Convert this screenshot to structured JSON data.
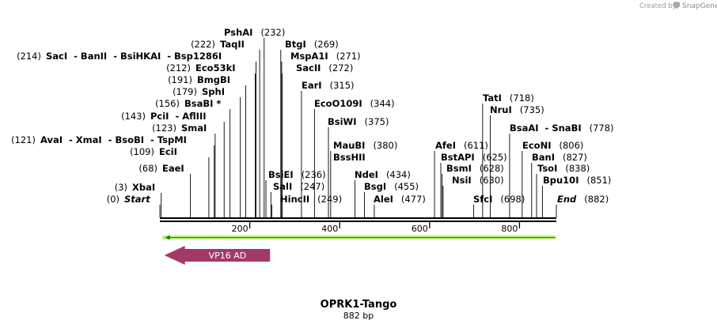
{
  "credit": {
    "prefix": "Created by",
    "brand": "SnapGene"
  },
  "map": {
    "title": "OPRK1-Tango",
    "length_label": "882 bp",
    "length": 882,
    "ticks": [
      "200",
      "400",
      "600",
      "800"
    ],
    "feature": {
      "name": "VP16 AD",
      "start": 10,
      "end": 245,
      "direction": "reverse",
      "color": "#a33a66"
    },
    "selection": {
      "start": 10,
      "end": 882,
      "color": "#b8f07a"
    }
  },
  "sites": [
    {
      "text": "Start",
      "pos": "(0)",
      "site": 0
    },
    {
      "text": "XbaI",
      "pos": "(3)",
      "site": 3
    },
    {
      "text": "EaeI",
      "pos": "(68)",
      "site": 68
    },
    {
      "text": "EciI",
      "pos": "(109)",
      "site": 109
    },
    {
      "text": "AvaI  - XmaI  - BsoBI  - TspMI",
      "pos": "(121)",
      "site": 121
    },
    {
      "text": "SmaI",
      "pos": "(123)",
      "site": 123
    },
    {
      "text": "PciI  - AflIII",
      "pos": "(143)",
      "site": 143
    },
    {
      "text": "BsaBI *",
      "pos": "(156)",
      "site": 156
    },
    {
      "text": "SphI",
      "pos": "(179)",
      "site": 179
    },
    {
      "text": "BmgBI",
      "pos": "(191)",
      "site": 191
    },
    {
      "text": "Eco53kI",
      "pos": "(212)",
      "site": 212
    },
    {
      "text": "SacI  - BanII  - BsiHKAI  - Bsp1286I",
      "pos": "(214)",
      "site": 214
    },
    {
      "text": "TaqII",
      "pos": "(222)",
      "site": 222
    },
    {
      "text": "PshAI",
      "pos": "(232)",
      "site": 232
    },
    {
      "text": "BsiEI",
      "pos": "(236)",
      "site": 236
    },
    {
      "text": "SalI",
      "pos": "(247)",
      "site": 247
    },
    {
      "text": "HincII",
      "pos": "(249)",
      "site": 249
    },
    {
      "text": "BtgI",
      "pos": "(269)",
      "site": 269
    },
    {
      "text": "MspA1I",
      "pos": "(271)",
      "site": 271
    },
    {
      "text": "SacII",
      "pos": "(272)",
      "site": 272
    },
    {
      "text": "EarI",
      "pos": "(315)",
      "site": 315
    },
    {
      "text": "EcoO109I",
      "pos": "(344)",
      "site": 344
    },
    {
      "text": "BsiWI",
      "pos": "(375)",
      "site": 375
    },
    {
      "text": "MauBI",
      "pos": "(380)",
      "site": 380
    },
    {
      "text": "BssHII",
      "pos": "",
      "site": 380
    },
    {
      "text": "NdeI",
      "pos": "(434)",
      "site": 434
    },
    {
      "text": "BsgI",
      "pos": "(455)",
      "site": 455
    },
    {
      "text": "AleI",
      "pos": "(477)",
      "site": 477
    },
    {
      "text": "AfeI",
      "pos": "(611)",
      "site": 611
    },
    {
      "text": "BstAPI",
      "pos": "(625)",
      "site": 625
    },
    {
      "text": "BsmI",
      "pos": "(628)",
      "site": 628
    },
    {
      "text": "NsiI",
      "pos": "(630)",
      "site": 630
    },
    {
      "text": "SfcI",
      "pos": "(698)",
      "site": 698
    },
    {
      "text": "TatI",
      "pos": "(718)",
      "site": 718
    },
    {
      "text": "NruI",
      "pos": "(735)",
      "site": 735
    },
    {
      "text": "BsaAI  - SnaBI",
      "pos": "(778)",
      "site": 778
    },
    {
      "text": "EcoNI",
      "pos": "(806)",
      "site": 806
    },
    {
      "text": "BanI",
      "pos": "(827)",
      "site": 827
    },
    {
      "text": "TsoI",
      "pos": "(838)",
      "site": 838
    },
    {
      "text": "Bpu10I",
      "pos": "(851)",
      "site": 851
    },
    {
      "text": "End",
      "pos": "(882)",
      "site": 882
    }
  ]
}
